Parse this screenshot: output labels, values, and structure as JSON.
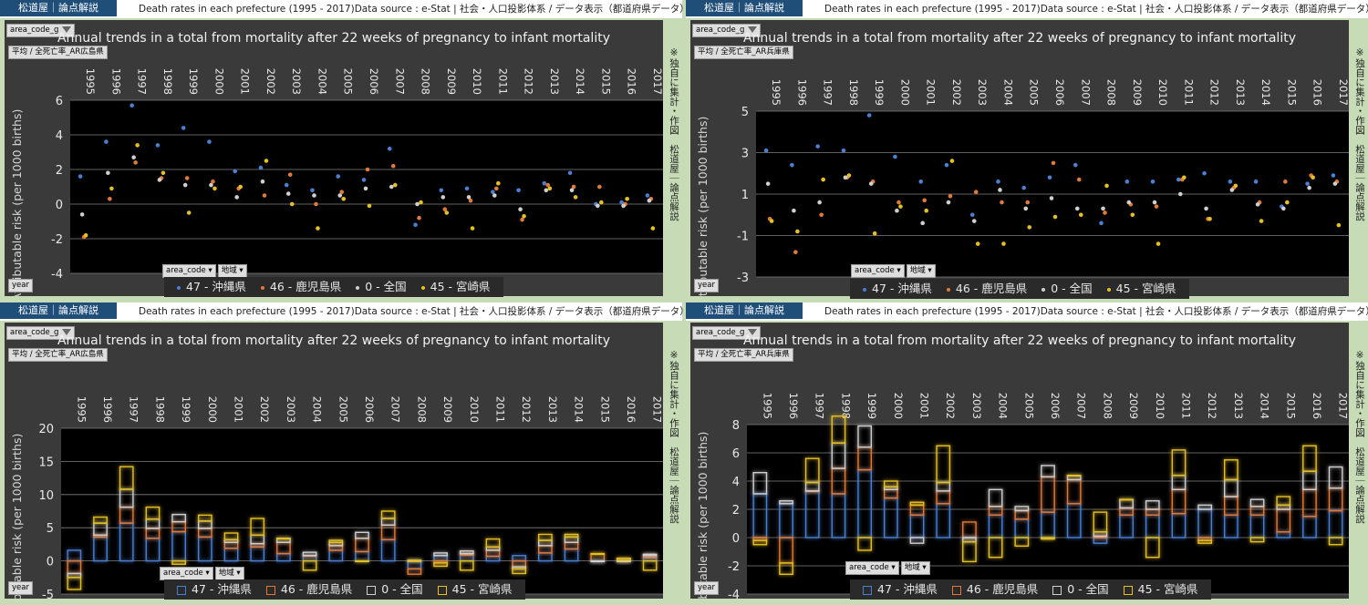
{
  "common": {
    "brand": "松道屋｜論点解説",
    "source_line": "Death rates in each prefecture (1995 - 2017)Data source : e-Stat | 社会・人口投影体系 / データ表示（都道府県データ）",
    "side_note": "※独自に集計・作図　松道屋｜論点解説",
    "chart_title": "Annual trends in a total from mortality after 22 weeks of pregnancy to infant mortality",
    "ylabel": "Attributable risk (per 1000 births)",
    "filter_label": "area_code_g",
    "year_button": "year",
    "area_code_button": "area_code",
    "chiiki_button": "地域",
    "years": [
      "1995",
      "1996",
      "1997",
      "1998",
      "1999",
      "2000",
      "2001",
      "2002",
      "2003",
      "2004",
      "2005",
      "2006",
      "2007",
      "2008",
      "2009",
      "2010",
      "2011",
      "2012",
      "2013",
      "2014",
      "2015",
      "2016",
      "2017"
    ]
  },
  "panels": [
    {
      "value_label": "平均 / 全死亡率_AR広島県"
    },
    {
      "value_label": "平均 / 全死亡率_AR兵庫県"
    },
    {
      "value_label": "平均 / 全死亡率_AR広島県"
    },
    {
      "value_label": "平均 / 全死亡率_AR兵庫県"
    }
  ],
  "colors": {
    "s47": "#4a7fd1",
    "s46": "#e07a3a",
    "s0": "#cfcfcf",
    "s45": "#e6c020",
    "plot_bg": "#000000",
    "grid": "#808080"
  },
  "chart_data": [
    {
      "type": "scatter",
      "title": "Annual trends in a total from mortality after 22 weeks of pregnancy to infant mortality",
      "ylabel": "Attributable risk (per 1000 births)",
      "ylim": [
        -4,
        6
      ],
      "yticks": [
        -4,
        -2,
        0,
        2,
        4,
        6
      ],
      "categories": [
        "1995",
        "1996",
        "1997",
        "1998",
        "1999",
        "2000",
        "2001",
        "2002",
        "2003",
        "2004",
        "2005",
        "2006",
        "2007",
        "2008",
        "2009",
        "2010",
        "2011",
        "2012",
        "2013",
        "2014",
        "2015",
        "2016",
        "2017"
      ],
      "series": [
        {
          "name": "47 - 沖縄県",
          "values": [
            1.6,
            3.6,
            5.7,
            3.4,
            4.4,
            3.6,
            1.9,
            2.1,
            1.1,
            0.8,
            1.6,
            1.4,
            3.2,
            -1.2,
            0.8,
            0.9,
            0.7,
            0.8,
            1.2,
            1.8,
            0.0,
            0.1,
            0.5
          ]
        },
        {
          "name": "46 - 鹿児島県",
          "values": [
            -1.9,
            0.3,
            2.4,
            1.5,
            1.5,
            1.3,
            0.9,
            0.5,
            1.7,
            0.0,
            0.7,
            2.0,
            2.2,
            -0.8,
            -0.3,
            0.2,
            0.9,
            -0.9,
            1.1,
            1.0,
            1.0,
            0.0,
            0.3
          ]
        },
        {
          "name": "0 - 全国",
          "values": [
            -0.6,
            1.8,
            2.7,
            1.4,
            1.1,
            1.1,
            0.4,
            1.3,
            0.6,
            0.5,
            0.5,
            0.9,
            1.0,
            0.0,
            0.4,
            0.4,
            0.5,
            -0.3,
            0.8,
            0.8,
            -0.1,
            -0.1,
            0.2
          ]
        },
        {
          "name": "45 - 宮崎県",
          "values": [
            -1.8,
            0.9,
            3.4,
            1.8,
            -0.5,
            0.9,
            1.0,
            2.5,
            0.0,
            -1.4,
            0.3,
            -0.1,
            1.1,
            0.1,
            -0.5,
            -1.4,
            1.2,
            -0.7,
            0.9,
            0.4,
            0.1,
            0.3,
            -1.4
          ]
        }
      ]
    },
    {
      "type": "scatter",
      "title": "Annual trends in a total from mortality after 22 weeks of pregnancy to infant mortality",
      "ylabel": "Attributable risk (per 1000 births)",
      "ylim": [
        -3,
        5
      ],
      "yticks": [
        -3,
        -1,
        1,
        3,
        5
      ],
      "categories": [
        "1995",
        "1996",
        "1997",
        "1998",
        "1999",
        "2000",
        "2001",
        "2002",
        "2003",
        "2004",
        "2005",
        "2006",
        "2007",
        "2008",
        "2009",
        "2010",
        "2011",
        "2012",
        "2013",
        "2014",
        "2015",
        "2016",
        "2017"
      ],
      "series": [
        {
          "name": "47 - 沖縄県",
          "values": [
            3.1,
            2.4,
            3.3,
            3.1,
            4.8,
            2.8,
            1.6,
            2.4,
            0.0,
            1.6,
            1.3,
            1.8,
            2.4,
            -0.4,
            1.6,
            1.6,
            1.7,
            2.0,
            1.6,
            1.6,
            0.4,
            1.5,
            1.9
          ]
        },
        {
          "name": "46 - 鹿児島県",
          "values": [
            -0.2,
            -1.8,
            0.0,
            1.8,
            1.6,
            0.6,
            0.7,
            0.9,
            1.1,
            0.6,
            0.6,
            2.5,
            1.7,
            0.1,
            0.5,
            0.4,
            1.7,
            -0.2,
            1.3,
            0.6,
            1.6,
            1.9,
            1.6
          ]
        },
        {
          "name": "0 - 全国",
          "values": [
            1.5,
            0.2,
            0.6,
            1.8,
            1.5,
            0.2,
            -0.4,
            0.6,
            -0.3,
            1.2,
            0.3,
            0.8,
            0.3,
            0.3,
            0.6,
            0.6,
            1.0,
            0.3,
            1.2,
            0.5,
            0.3,
            1.3,
            1.5
          ]
        },
        {
          "name": "45 - 宮崎県",
          "values": [
            -0.3,
            -0.8,
            1.7,
            1.9,
            -0.9,
            0.4,
            0.2,
            2.6,
            -1.4,
            -1.4,
            -0.6,
            -0.1,
            0.0,
            1.4,
            0.0,
            -1.4,
            1.8,
            -0.2,
            1.4,
            -0.3,
            0.6,
            1.8,
            -0.5
          ]
        }
      ]
    },
    {
      "type": "stacked-box",
      "title": "Annual trends in a total from mortality after 22 weeks of pregnancy to infant mortality",
      "ylabel": "Attributable risk (per 1000 births)",
      "ylim": [
        -5,
        20
      ],
      "yticks": [
        -5,
        0,
        5,
        10,
        15,
        20
      ],
      "categories": [
        "1995",
        "1996",
        "1997",
        "1998",
        "1999",
        "2000",
        "2001",
        "2002",
        "2003",
        "2004",
        "2005",
        "2006",
        "2007",
        "2008",
        "2009",
        "2010",
        "2011",
        "2012",
        "2013",
        "2014",
        "2015",
        "2016",
        "2017"
      ],
      "series": [
        {
          "name": "47 - 沖縄県",
          "values": [
            1.6,
            3.6,
            5.7,
            3.4,
            4.4,
            3.6,
            1.9,
            2.1,
            1.1,
            0.8,
            1.6,
            1.4,
            3.2,
            -1.2,
            0.8,
            0.9,
            0.7,
            0.8,
            1.2,
            1.8,
            0.0,
            0.1,
            0.5
          ]
        },
        {
          "name": "46 - 鹿児島県",
          "values": [
            -1.9,
            0.3,
            2.4,
            1.5,
            1.5,
            1.3,
            0.9,
            0.5,
            1.7,
            0.0,
            0.7,
            2.0,
            2.2,
            -0.8,
            -0.3,
            0.2,
            0.9,
            -0.9,
            1.1,
            1.0,
            1.0,
            0.0,
            0.3
          ]
        },
        {
          "name": "0 - 全国",
          "values": [
            -0.6,
            1.8,
            2.7,
            1.4,
            1.1,
            1.1,
            0.4,
            1.3,
            0.6,
            0.5,
            0.5,
            0.9,
            1.0,
            0.0,
            0.4,
            0.4,
            0.5,
            -0.3,
            0.8,
            0.8,
            -0.1,
            -0.1,
            0.2
          ]
        },
        {
          "name": "45 - 宮崎県",
          "values": [
            -1.8,
            0.9,
            3.4,
            1.8,
            -0.5,
            0.9,
            1.0,
            2.5,
            0.0,
            -1.4,
            0.3,
            -0.1,
            1.1,
            0.1,
            -0.5,
            -1.4,
            1.2,
            -0.7,
            0.9,
            0.4,
            0.1,
            0.3,
            -1.4
          ]
        }
      ]
    },
    {
      "type": "stacked-box",
      "title": "Annual trends in a total from mortality after 22 weeks of pregnancy to infant mortality",
      "ylabel": "Attributable risk (per 1000 births)",
      "ylim": [
        -4,
        8
      ],
      "yticks": [
        -4,
        -2,
        0,
        2,
        4,
        6,
        8
      ],
      "categories": [
        "1995",
        "1996",
        "1997",
        "1998",
        "1999",
        "2000",
        "2001",
        "2002",
        "2003",
        "2004",
        "2005",
        "2006",
        "2007",
        "2008",
        "2009",
        "2010",
        "2011",
        "2012",
        "2013",
        "2014",
        "2015",
        "2016",
        "2017"
      ],
      "series": [
        {
          "name": "47 - 沖縄県",
          "values": [
            3.1,
            2.4,
            3.3,
            3.1,
            4.8,
            2.8,
            1.6,
            2.4,
            0.0,
            1.6,
            1.3,
            1.8,
            2.4,
            -0.4,
            1.6,
            1.6,
            1.7,
            2.0,
            1.6,
            1.6,
            0.4,
            1.5,
            1.9
          ]
        },
        {
          "name": "46 - 鹿児島県",
          "values": [
            -0.2,
            -1.8,
            0.0,
            1.8,
            1.6,
            0.6,
            0.7,
            0.9,
            1.1,
            0.6,
            0.6,
            2.5,
            1.7,
            0.1,
            0.5,
            0.4,
            1.7,
            -0.2,
            1.3,
            0.6,
            1.6,
            1.9,
            1.6
          ]
        },
        {
          "name": "0 - 全国",
          "values": [
            1.5,
            0.2,
            0.6,
            1.8,
            1.5,
            0.2,
            -0.4,
            0.6,
            -0.3,
            1.2,
            0.3,
            0.8,
            0.3,
            0.3,
            0.6,
            0.6,
            1.0,
            0.3,
            1.2,
            0.5,
            0.3,
            1.3,
            1.5
          ]
        },
        {
          "name": "45 - 宮崎県",
          "values": [
            -0.3,
            -0.8,
            1.7,
            1.9,
            -0.9,
            0.4,
            0.2,
            2.6,
            -1.4,
            -1.4,
            -0.6,
            -0.1,
            0.0,
            1.4,
            0.0,
            -1.4,
            1.8,
            -0.2,
            1.4,
            -0.3,
            0.6,
            1.8,
            -0.5
          ]
        }
      ]
    }
  ]
}
